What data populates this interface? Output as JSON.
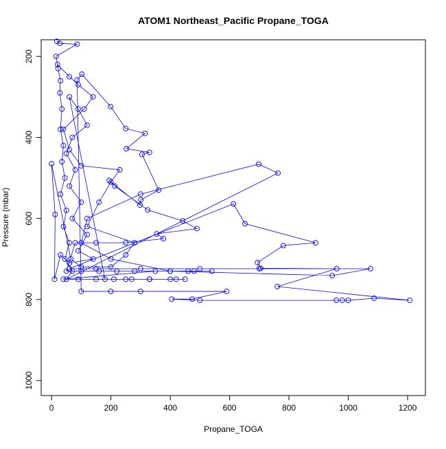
{
  "chart_data": {
    "type": "line",
    "markers": true,
    "color": "#0000ff",
    "title": "ATOM1 Northeast_Pacific Propane_TOGA",
    "x_label": "Propane_TOGA",
    "y_label": "Pressure (mbar)",
    "xlim": [
      -35,
      1260
    ],
    "ylim": [
      1037,
      159
    ],
    "xticks": [
      0,
      200,
      400,
      600,
      800,
      1000,
      1200
    ],
    "yticks": [
      200,
      400,
      600,
      800,
      1000
    ],
    "x": [
      18,
      28,
      86,
      15,
      22,
      30,
      28,
      35,
      30,
      40,
      35,
      45,
      30,
      50,
      40,
      60,
      45,
      70,
      50,
      763,
      698,
      300,
      120,
      100,
      200,
      400,
      946,
      1075,
      700,
      500,
      300,
      150,
      60,
      613,
      652,
      890,
      781,
      694,
      705,
      961,
      761,
      1207,
      1087,
      1000,
      980,
      960,
      500,
      405,
      474,
      590,
      300,
      200,
      100,
      86,
      102,
      199,
      250,
      315,
      252,
      330,
      305,
      361,
      301,
      298,
      194,
      213,
      324,
      442,
      490,
      354,
      377,
      250,
      150,
      80,
      50,
      100,
      160,
      220,
      280,
      400,
      480,
      540,
      460,
      350,
      40,
      90,
      150,
      210,
      270,
      330,
      400,
      450,
      420,
      330,
      250,
      180,
      60,
      90,
      120,
      70,
      50,
      80,
      60,
      100,
      70,
      120,
      90,
      140,
      60,
      30,
      10,
      12,
      0,
      65,
      100,
      200,
      250,
      280,
      120,
      160,
      200,
      230,
      100,
      60,
      40,
      110,
      140,
      90,
      60,
      20
    ],
    "values": [
      163,
      168,
      170,
      200,
      230,
      260,
      290,
      330,
      380,
      420,
      460,
      500,
      540,
      580,
      620,
      660,
      700,
      730,
      750,
      488,
      466,
      540,
      600,
      660,
      700,
      730,
      741,
      724,
      724,
      724,
      724,
      724,
      724,
      564,
      613,
      660,
      667,
      709,
      723,
      724,
      768,
      802,
      797,
      802,
      802,
      802,
      802,
      799,
      799,
      780,
      780,
      780,
      780,
      258,
      244,
      324,
      378,
      390,
      428,
      437,
      442,
      530,
      554,
      567,
      506,
      520,
      579,
      606,
      625,
      638,
      650,
      660,
      660,
      660,
      730,
      730,
      730,
      730,
      730,
      730,
      730,
      730,
      730,
      730,
      750,
      750,
      750,
      750,
      750,
      750,
      750,
      750,
      750,
      750,
      750,
      750,
      300,
      330,
      370,
      400,
      440,
      480,
      520,
      560,
      600,
      640,
      680,
      700,
      710,
      690,
      750,
      590,
      465,
      700,
      720,
      720,
      690,
      660,
      620,
      560,
      510,
      480,
      470,
      430,
      380,
      330,
      300,
      270,
      250,
      220
    ]
  }
}
